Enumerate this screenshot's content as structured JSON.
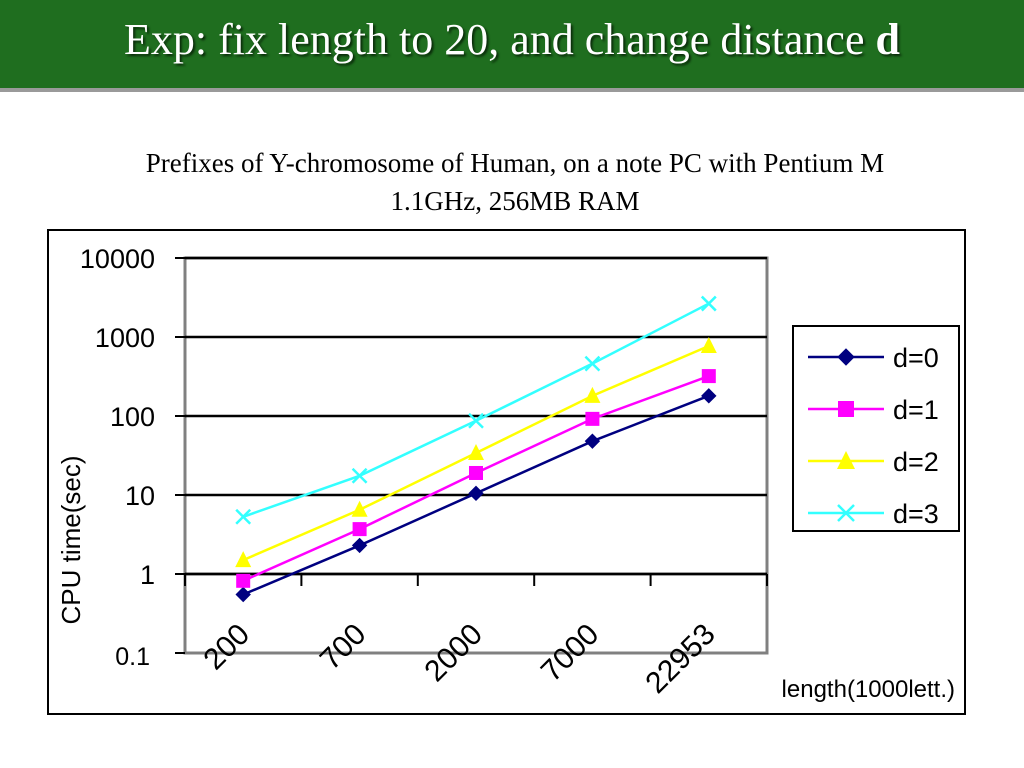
{
  "slide": {
    "title_main": "Exp: fix length to 20, and change distance ",
    "title_var": "d",
    "subtitle_line1": "Prefixes of Y-chromosome of Human, on a note PC with Pentium M",
    "subtitle_line2": "1.1GHz, 256MB RAM"
  },
  "chart_data": {
    "type": "line",
    "title": "",
    "xlabel": "length(1000lett.)",
    "ylabel": "CPU time(sec)",
    "y_scale": "log",
    "ylim": [
      0.1,
      10000
    ],
    "y_ticks": [
      "10000",
      "1000",
      "100",
      "10",
      "1",
      "0.1"
    ],
    "categories": [
      "200",
      "700",
      "2000",
      "7000",
      "22953"
    ],
    "grid": "horizontal major gridlines",
    "legend_position": "right",
    "series": [
      {
        "name": "d=0",
        "color": "#000080",
        "marker": "diamond",
        "values": [
          0.55,
          2.3,
          10.5,
          48,
          180
        ]
      },
      {
        "name": "d=1",
        "color": "#ff00ff",
        "marker": "square",
        "values": [
          0.82,
          3.7,
          19,
          92,
          320
        ]
      },
      {
        "name": "d=2",
        "color": "#ffff00",
        "marker": "triangle",
        "values": [
          1.5,
          6.5,
          34,
          180,
          770
        ]
      },
      {
        "name": "d=3",
        "color": "#33ffff",
        "marker": "x",
        "values": [
          5.3,
          17.5,
          87,
          460,
          2650
        ]
      }
    ]
  }
}
